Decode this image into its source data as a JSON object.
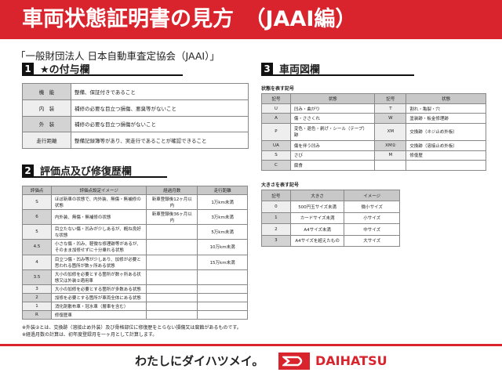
{
  "title": "車両状態証明書の見方　（JAAI編）",
  "organization": "「一般財団法人 日本自動車査定協会（JAAI）」",
  "section1": {
    "num": "1",
    "title": "★の付与欄",
    "rows": [
      {
        "label": "機　能",
        "text": "整備、保証付きであること"
      },
      {
        "label": "内　装",
        "text": "補修の必要な目立つ損傷、悪臭等がないこと"
      },
      {
        "label": "外　装",
        "text": "補修の必要な目立つ損傷がないこと"
      },
      {
        "label": "走行距離",
        "text": "整備記録簿等があり、実走行であることが確認できること"
      }
    ]
  },
  "section2": {
    "num": "2",
    "title": "評価点及び修復歴欄",
    "headers": [
      "評価点",
      "評価点設定イメージ",
      "経過月数",
      "走行距離"
    ],
    "rows": [
      [
        "S",
        "ほぼ新車の状態で、内外装、無傷・無補修の状態",
        "新車登録後12ヶ月以内",
        "1万km未満"
      ],
      [
        "6",
        "内外装、無傷・無補修の状態",
        "新車登録後36ヶ月以内",
        "3万km未満"
      ],
      [
        "5",
        "目立たない傷・凹みが少しあるが、概ね良好な状態",
        "",
        "5万km未満"
      ],
      [
        "4.5",
        "小さな傷・凹み、軽微な修理跡等があるが、そのまま加修せずに十分乗れる状態",
        "",
        "10万km未満"
      ],
      [
        "4",
        "目立つ傷・凹み等が少しあり、加修が必要と思われる箇所が数ヶ所ある状態",
        "",
        "15万km未満"
      ],
      [
        "3.5",
        "大小の加修を必要とする箇所が数ヶ所ある状態又は外装②適用車",
        "",
        ""
      ],
      [
        "3",
        "大小の加修を必要とする箇所が多数ある状態",
        "",
        ""
      ],
      [
        "2",
        "加修を必要とする箇所が車両全体にある状態",
        "",
        ""
      ],
      [
        "1",
        "消化剤散布車・冠水車（層車を含む）",
        "",
        ""
      ],
      [
        "R",
        "修復歴車",
        "",
        ""
      ]
    ],
    "notes": [
      "※外装②とは、交換跡（溶接止め外装）及び骨格部位に修復歴をとらない損傷又は腐蝕があるものです。",
      "※経過月数の計算は、初年度登録月を一ヶ月として計算します。"
    ]
  },
  "section3": {
    "num": "3",
    "title": "車両図欄",
    "state_label": "状態を表す記号",
    "state_headers": [
      "記号",
      "状態",
      "記号",
      "状態"
    ],
    "state_rows": [
      [
        "U",
        "凹み・曲がり",
        "T",
        "割れ・亀裂・穴"
      ],
      [
        "A",
        "傷・ささくれ",
        "W",
        "塗装跡・板金修理跡"
      ],
      [
        "P",
        "変色・退色・剥げ・シール（テープ）跡",
        "XM",
        "交換跡（ネジ止め外板）"
      ],
      [
        "UA",
        "傷を伴う凹み",
        "XM②",
        "交換跡（溶接止め外板）"
      ],
      [
        "S",
        "さび",
        "M",
        "修復歴"
      ],
      [
        "C",
        "腐食",
        "",
        ""
      ]
    ],
    "size_label": "大きさを表す記号",
    "size_headers": [
      "記号",
      "大きさ",
      "イメージ"
    ],
    "size_rows": [
      [
        "0",
        "500円玉サイズ未満",
        "微小サイズ"
      ],
      [
        "1",
        "カードサイズ未満",
        "小サイズ"
      ],
      [
        "2",
        "A4サイズ未満",
        "中サイズ"
      ],
      [
        "3",
        "A4サイズを超えたもの",
        "大サイズ"
      ]
    ]
  },
  "footer": {
    "slogan": "わたしにダイハツメイ。",
    "brand": "DAIHATSU"
  },
  "colors": {
    "brand_red": "#d9232d"
  }
}
